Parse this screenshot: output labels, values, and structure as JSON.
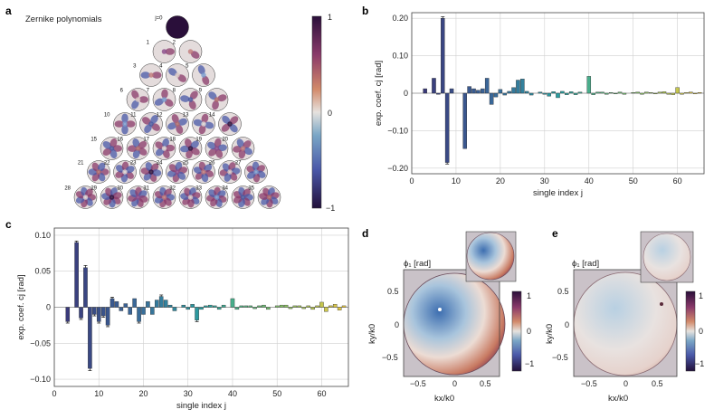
{
  "panels": {
    "a": {
      "label": "a",
      "title": "Zernike polynomials",
      "colorbar_ticks": [
        "1",
        "0",
        "−1"
      ],
      "first_index": "j=0",
      "index_labels": [
        "1",
        "2",
        "3",
        "4",
        "5",
        "6",
        "7",
        "8",
        "9",
        "10",
        "11",
        "12",
        "13",
        "14",
        "15",
        "16",
        "17",
        "18",
        "19",
        "20",
        "21",
        "22",
        "23",
        "24",
        "25",
        "26",
        "27",
        "28",
        "29",
        "30",
        "31",
        "32",
        "33",
        "34",
        "35"
      ]
    },
    "b": {
      "label": "b"
    },
    "c": {
      "label": "c"
    },
    "d": {
      "label": "d",
      "title": "ϕ₁ [rad]",
      "xlabel": "kx/k0",
      "ylabel": "ky/k0",
      "xticks": [
        "−0.5",
        "0",
        "0.5"
      ],
      "yticks": [
        "0.5",
        "0",
        "−0.5"
      ],
      "colorbar_ticks": [
        "1",
        "0",
        "−1"
      ]
    },
    "e": {
      "label": "e",
      "title": "ϕ₁ [rad]",
      "xlabel": "kx/k0",
      "ylabel": "ky/k0",
      "xticks": [
        "−0.5",
        "0",
        "0.5"
      ],
      "yticks": [
        "0.5",
        "0",
        "−0.5"
      ],
      "colorbar_ticks": [
        "1",
        "0",
        "−1"
      ]
    }
  },
  "chart_data": [
    {
      "panel": "b",
      "type": "bar",
      "xlabel": "single index j",
      "ylabel": "exp. coef. cj [rad]",
      "xlim": [
        0,
        66
      ],
      "ylim": [
        -0.215,
        0.215
      ],
      "xticks": [
        0,
        10,
        20,
        30,
        40,
        50,
        60
      ],
      "yticks": [
        -0.2,
        -0.1,
        0,
        0.1,
        0.2
      ],
      "ytick_labels": [
        "−0.20",
        "−0.10",
        "0",
        "0.10",
        "0.20"
      ],
      "grid": true,
      "x": [
        3,
        4,
        5,
        6,
        7,
        8,
        9,
        10,
        11,
        12,
        13,
        14,
        15,
        16,
        17,
        18,
        19,
        20,
        21,
        22,
        23,
        24,
        25,
        26,
        27,
        28,
        29,
        30,
        31,
        32,
        33,
        34,
        35,
        36,
        37,
        38,
        39,
        40,
        41,
        42,
        43,
        44,
        45,
        46,
        47,
        48,
        49,
        50,
        51,
        52,
        53,
        54,
        55,
        56,
        57,
        58,
        59,
        60,
        61,
        62,
        63,
        64,
        65
      ],
      "values": [
        0.012,
        0,
        0.04,
        -0.003,
        0.2,
        -0.185,
        0.012,
        0,
        0,
        -0.148,
        0.018,
        0.012,
        0.008,
        0.012,
        0.04,
        -0.03,
        -0.01,
        0.01,
        -0.005,
        0.005,
        0.015,
        0.035,
        0.038,
        0.005,
        -0.005,
        0,
        0.003,
        -0.003,
        -0.008,
        0.004,
        -0.012,
        0.005,
        -0.004,
        0.004,
        -0.004,
        0.003,
        0,
        0.045,
        -0.004,
        0.003,
        0.003,
        -0.003,
        0.002,
        -0.002,
        0.003,
        -0.003,
        0,
        0.002,
        0.003,
        -0.003,
        0.003,
        0.002,
        -0.002,
        0.003,
        0.004,
        -0.003,
        -0.004,
        0.015,
        -0.003,
        0.002,
        0.003,
        -0.002,
        0.002
      ],
      "errors": [
        0.002,
        0,
        0.002,
        0.001,
        0.004,
        0.004,
        0.002,
        0,
        0,
        0.003,
        0.002,
        0.002,
        0.001,
        0.002,
        0.002,
        0.002,
        0.001,
        0.001,
        0.001,
        0.001,
        0.001,
        0.002,
        0.002,
        0.001,
        0.001,
        0,
        0.001,
        0.001,
        0.001,
        0.001,
        0.001,
        0.001,
        0.001,
        0.001,
        0.001,
        0.001,
        0,
        0.002,
        0.001,
        0.001,
        0.001,
        0.001,
        0.001,
        0.001,
        0.001,
        0.001,
        0,
        0.001,
        0.001,
        0.001,
        0.001,
        0.001,
        0.001,
        0.001,
        0.001,
        0.001,
        0.001,
        0.001,
        0.001,
        0.001,
        0.001,
        0.001,
        0.001
      ]
    },
    {
      "panel": "c",
      "type": "bar",
      "xlabel": "single index j",
      "ylabel": "exp. coef. cj [rad]",
      "xlim": [
        0,
        66
      ],
      "ylim": [
        -0.11,
        0.11
      ],
      "xticks": [
        0,
        10,
        20,
        30,
        40,
        50,
        60
      ],
      "yticks": [
        -0.1,
        -0.05,
        0,
        0.05,
        0.1
      ],
      "ytick_labels": [
        "−0.10",
        "−0.05",
        "0",
        "0.05",
        "0.10"
      ],
      "grid": true,
      "x": [
        3,
        4,
        5,
        6,
        7,
        8,
        9,
        10,
        11,
        12,
        13,
        14,
        15,
        16,
        17,
        18,
        19,
        20,
        21,
        22,
        23,
        24,
        25,
        26,
        27,
        28,
        29,
        30,
        31,
        32,
        33,
        34,
        35,
        36,
        37,
        38,
        39,
        40,
        41,
        42,
        43,
        44,
        45,
        46,
        47,
        48,
        49,
        50,
        51,
        52,
        53,
        54,
        55,
        56,
        57,
        58,
        59,
        60,
        61,
        62,
        63,
        64,
        65
      ],
      "values": [
        -0.02,
        0,
        0.09,
        -0.015,
        0.055,
        -0.085,
        -0.01,
        -0.02,
        -0.012,
        -0.025,
        0.012,
        0.008,
        -0.005,
        0.005,
        -0.01,
        0.012,
        -0.02,
        -0.01,
        0.008,
        -0.01,
        0.01,
        0.015,
        0.01,
        0.003,
        -0.005,
        0,
        0.003,
        -0.003,
        0.004,
        -0.018,
        -0.003,
        0.002,
        0.003,
        0.002,
        -0.003,
        0.003,
        0,
        0.012,
        -0.003,
        0.002,
        0.002,
        0.002,
        -0.002,
        0.002,
        0.003,
        -0.003,
        0,
        0.002,
        0.003,
        0.003,
        -0.002,
        0.002,
        0.002,
        -0.002,
        0.002,
        -0.003,
        0.002,
        0.007,
        -0.006,
        0.002,
        0.004,
        -0.004,
        0.002
      ],
      "errors": [
        0.002,
        0,
        0.002,
        0.002,
        0.003,
        0.003,
        0.002,
        0.002,
        0.002,
        0.002,
        0.002,
        0.001,
        0.001,
        0.001,
        0.001,
        0.001,
        0.002,
        0.001,
        0.001,
        0.001,
        0.001,
        0.002,
        0.001,
        0.001,
        0.001,
        0,
        0.001,
        0.001,
        0.001,
        0.002,
        0.001,
        0.001,
        0.001,
        0.001,
        0.001,
        0.001,
        0,
        0.001,
        0.001,
        0.001,
        0.001,
        0.001,
        0.001,
        0.001,
        0.001,
        0.001,
        0,
        0.001,
        0.001,
        0.001,
        0.001,
        0.001,
        0.001,
        0.001,
        0.001,
        0.001,
        0.001,
        0.001,
        0.001,
        0.001,
        0.001,
        0.001,
        0.001
      ]
    }
  ]
}
